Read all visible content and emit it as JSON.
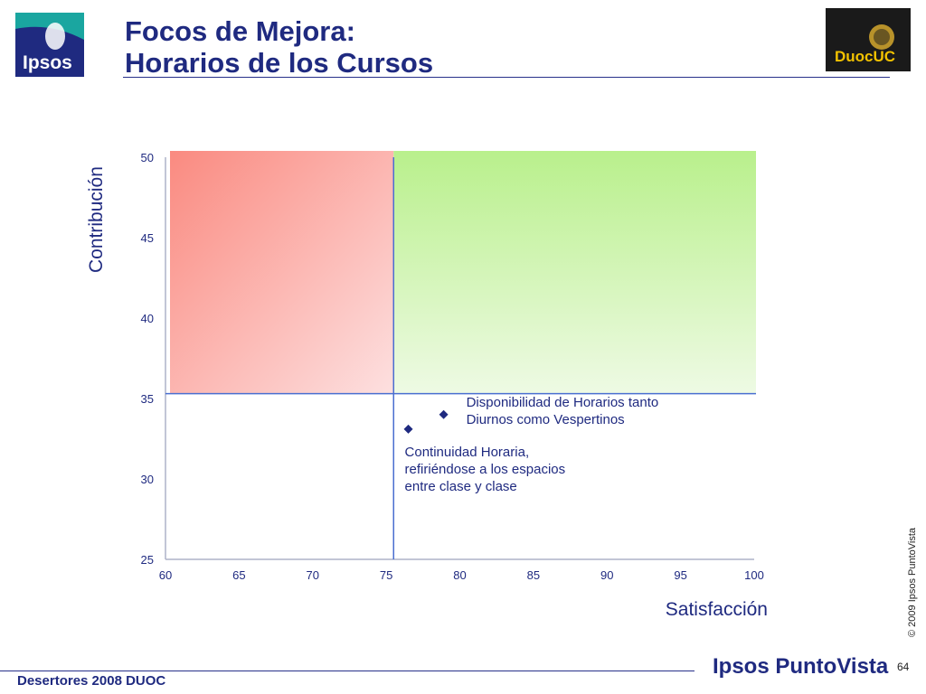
{
  "header": {
    "title_line1": "Focos de Mejora:",
    "title_line2": "Horarios de los Cursos",
    "ipsos_logo_text": "Ipsos",
    "duoc_logo_text": "DuocUC"
  },
  "footer": {
    "left_text": "Desertores 2008 DUOC",
    "brand_text": "Ipsos PuntoVista",
    "copyright": "© 2009 Ipsos PuntoVista",
    "page_number": "64"
  },
  "colors": {
    "brand_blue": "#1f2a80",
    "red_quadrant": "#fa8a80",
    "green_quadrant": "#c2f29a",
    "divider_line": "#4a6fd0",
    "marker": "#1f2a80"
  },
  "chart_data": {
    "type": "scatter",
    "title": "",
    "xlabel": "Satisfacción",
    "ylabel": "Contribución",
    "xlim": [
      60,
      100
    ],
    "ylim": [
      25,
      50
    ],
    "xticks": [
      60,
      65,
      70,
      75,
      80,
      85,
      90,
      95,
      100
    ],
    "yticks": [
      25,
      30,
      35,
      40,
      45,
      50
    ],
    "grid": false,
    "legend": "none",
    "threshold_x": 75.5,
    "threshold_y": 35.3,
    "points": [
      {
        "x": 78.9,
        "y": 34.0,
        "label_lines": [
          "Disponibilidad de Horarios  tanto",
          "Diurnos como Vespertinos"
        ]
      },
      {
        "x": 76.5,
        "y": 33.1,
        "label_lines": [
          "Continuidad Horaria,",
          "refiriéndose a los espacios",
          "entre clase y clase"
        ]
      }
    ]
  }
}
